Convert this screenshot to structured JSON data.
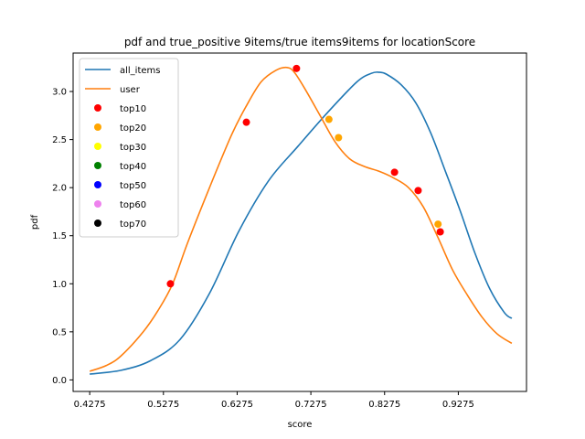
{
  "chart_data": {
    "type": "line",
    "title": "pdf and true_positive 9items/true items9items for locationScore",
    "xlabel": "score",
    "ylabel": "pdf",
    "xlim": [
      0.405,
      1.02
    ],
    "ylim": [
      -0.12,
      3.4
    ],
    "x_ticks": [
      "0.4275",
      "0.5275",
      "0.6275",
      "0.7275",
      "0.8275",
      "0.9275"
    ],
    "y_ticks": [
      "0.0",
      "0.5",
      "1.0",
      "1.5",
      "2.0",
      "2.5",
      "3.0"
    ],
    "x_tick_values": [
      0.4275,
      0.5275,
      0.6275,
      0.7275,
      0.8275,
      0.9275
    ],
    "y_tick_values": [
      0.0,
      0.5,
      1.0,
      1.5,
      2.0,
      2.5,
      3.0
    ],
    "legend_position": "top-left",
    "series": [
      {
        "name": "all_items",
        "color": "#1f77b4",
        "x": [
          0.4275,
          0.47,
          0.51,
          0.55,
          0.59,
          0.63,
          0.67,
          0.71,
          0.75,
          0.79,
          0.81,
          0.82,
          0.83,
          0.85,
          0.87,
          0.89,
          0.91,
          0.93,
          0.95,
          0.97,
          0.99,
          1.0
        ],
        "y": [
          0.06,
          0.1,
          0.2,
          0.42,
          0.9,
          1.55,
          2.07,
          2.43,
          2.78,
          3.1,
          3.19,
          3.2,
          3.18,
          3.07,
          2.88,
          2.57,
          2.17,
          1.76,
          1.32,
          0.95,
          0.7,
          0.64
        ]
      },
      {
        "name": "user",
        "color": "#ff7f0e",
        "x": [
          0.4275,
          0.45,
          0.47,
          0.5,
          0.52,
          0.54,
          0.56,
          0.59,
          0.62,
          0.64,
          0.66,
          0.68,
          0.695,
          0.705,
          0.72,
          0.74,
          0.76,
          0.78,
          0.8,
          0.82,
          0.84,
          0.86,
          0.88,
          0.9,
          0.92,
          0.94,
          0.96,
          0.98,
          1.0
        ],
        "y": [
          0.09,
          0.15,
          0.25,
          0.5,
          0.72,
          1.0,
          1.42,
          2.0,
          2.55,
          2.85,
          3.1,
          3.22,
          3.25,
          3.2,
          3.02,
          2.75,
          2.48,
          2.3,
          2.22,
          2.17,
          2.1,
          2.0,
          1.8,
          1.48,
          1.14,
          0.88,
          0.65,
          0.48,
          0.38
        ]
      }
    ],
    "markers": [
      {
        "name": "top10",
        "color": "#ff0000",
        "points": [
          [
            0.537,
            1.0
          ],
          [
            0.64,
            2.68
          ],
          [
            0.708,
            3.24
          ],
          [
            0.841,
            2.16
          ],
          [
            0.873,
            1.97
          ],
          [
            0.903,
            1.54
          ]
        ]
      },
      {
        "name": "top20",
        "color": "#ffa500",
        "points": [
          [
            0.752,
            2.71
          ],
          [
            0.765,
            2.52
          ],
          [
            0.9,
            1.62
          ]
        ]
      },
      {
        "name": "top30",
        "color": "#ffff00",
        "points": []
      },
      {
        "name": "top40",
        "color": "#008000",
        "points": []
      },
      {
        "name": "top50",
        "color": "#0000ff",
        "points": []
      },
      {
        "name": "top60",
        "color": "#ee82ee",
        "points": []
      },
      {
        "name": "top70",
        "color": "#000000",
        "points": []
      }
    ]
  }
}
